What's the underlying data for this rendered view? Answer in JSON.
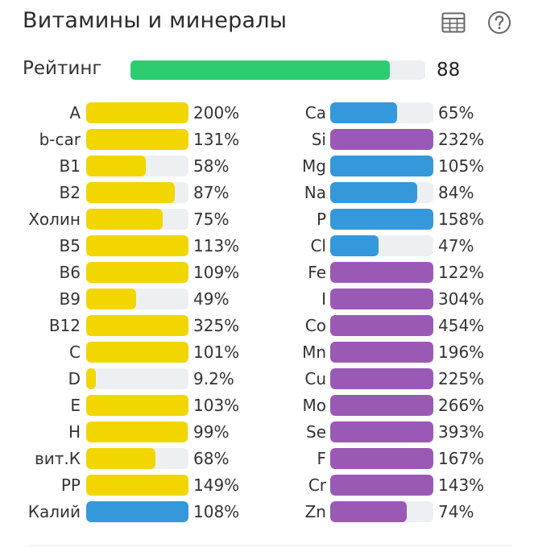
{
  "header": {
    "title": "Витамины и минералы",
    "table_icon": "table-icon",
    "help_icon": "help-icon"
  },
  "rating": {
    "label": "Рейтинг",
    "value": "88",
    "fraction": 0.88,
    "color": "#2ecc71"
  },
  "colors": {
    "vitamin": "#f2d600",
    "mineral_blue": "#3498db",
    "mineral_purple": "#9b59b6",
    "track": "#edf0f2"
  },
  "vitamins": [
    {
      "label": "A",
      "value": "200%",
      "pct": 200,
      "color": "#f2d600"
    },
    {
      "label": "b-car",
      "value": "131%",
      "pct": 131,
      "color": "#f2d600"
    },
    {
      "label": "B1",
      "value": "58%",
      "pct": 58,
      "color": "#f2d600"
    },
    {
      "label": "B2",
      "value": "87%",
      "pct": 87,
      "color": "#f2d600"
    },
    {
      "label": "Холин",
      "value": "75%",
      "pct": 75,
      "color": "#f2d600"
    },
    {
      "label": "B5",
      "value": "113%",
      "pct": 113,
      "color": "#f2d600"
    },
    {
      "label": "B6",
      "value": "109%",
      "pct": 109,
      "color": "#f2d600"
    },
    {
      "label": "B9",
      "value": "49%",
      "pct": 49,
      "color": "#f2d600"
    },
    {
      "label": "B12",
      "value": "325%",
      "pct": 325,
      "color": "#f2d600"
    },
    {
      "label": "C",
      "value": "101%",
      "pct": 101,
      "color": "#f2d600"
    },
    {
      "label": "D",
      "value": "9.2%",
      "pct": 9.2,
      "color": "#f2d600"
    },
    {
      "label": "E",
      "value": "103%",
      "pct": 103,
      "color": "#f2d600"
    },
    {
      "label": "H",
      "value": "99%",
      "pct": 99,
      "color": "#f2d600"
    },
    {
      "label": "вит.К",
      "value": "68%",
      "pct": 68,
      "color": "#f2d600"
    },
    {
      "label": "PP",
      "value": "149%",
      "pct": 149,
      "color": "#f2d600"
    },
    {
      "label": "Калий",
      "value": "108%",
      "pct": 108,
      "color": "#3498db"
    }
  ],
  "minerals": [
    {
      "label": "Ca",
      "value": "65%",
      "pct": 65,
      "color": "#3498db"
    },
    {
      "label": "Si",
      "value": "232%",
      "pct": 232,
      "color": "#9b59b6"
    },
    {
      "label": "Mg",
      "value": "105%",
      "pct": 105,
      "color": "#3498db"
    },
    {
      "label": "Na",
      "value": "84%",
      "pct": 84,
      "color": "#3498db"
    },
    {
      "label": "P",
      "value": "158%",
      "pct": 158,
      "color": "#3498db"
    },
    {
      "label": "Cl",
      "value": "47%",
      "pct": 47,
      "color": "#3498db"
    },
    {
      "label": "Fe",
      "value": "122%",
      "pct": 122,
      "color": "#9b59b6"
    },
    {
      "label": "I",
      "value": "304%",
      "pct": 304,
      "color": "#9b59b6"
    },
    {
      "label": "Co",
      "value": "454%",
      "pct": 454,
      "color": "#9b59b6"
    },
    {
      "label": "Mn",
      "value": "196%",
      "pct": 196,
      "color": "#9b59b6"
    },
    {
      "label": "Cu",
      "value": "225%",
      "pct": 225,
      "color": "#9b59b6"
    },
    {
      "label": "Mo",
      "value": "266%",
      "pct": 266,
      "color": "#9b59b6"
    },
    {
      "label": "Se",
      "value": "393%",
      "pct": 393,
      "color": "#9b59b6"
    },
    {
      "label": "F",
      "value": "167%",
      "pct": 167,
      "color": "#9b59b6"
    },
    {
      "label": "Cr",
      "value": "143%",
      "pct": 143,
      "color": "#9b59b6"
    },
    {
      "label": "Zn",
      "value": "74%",
      "pct": 74,
      "color": "#9b59b6"
    }
  ]
}
